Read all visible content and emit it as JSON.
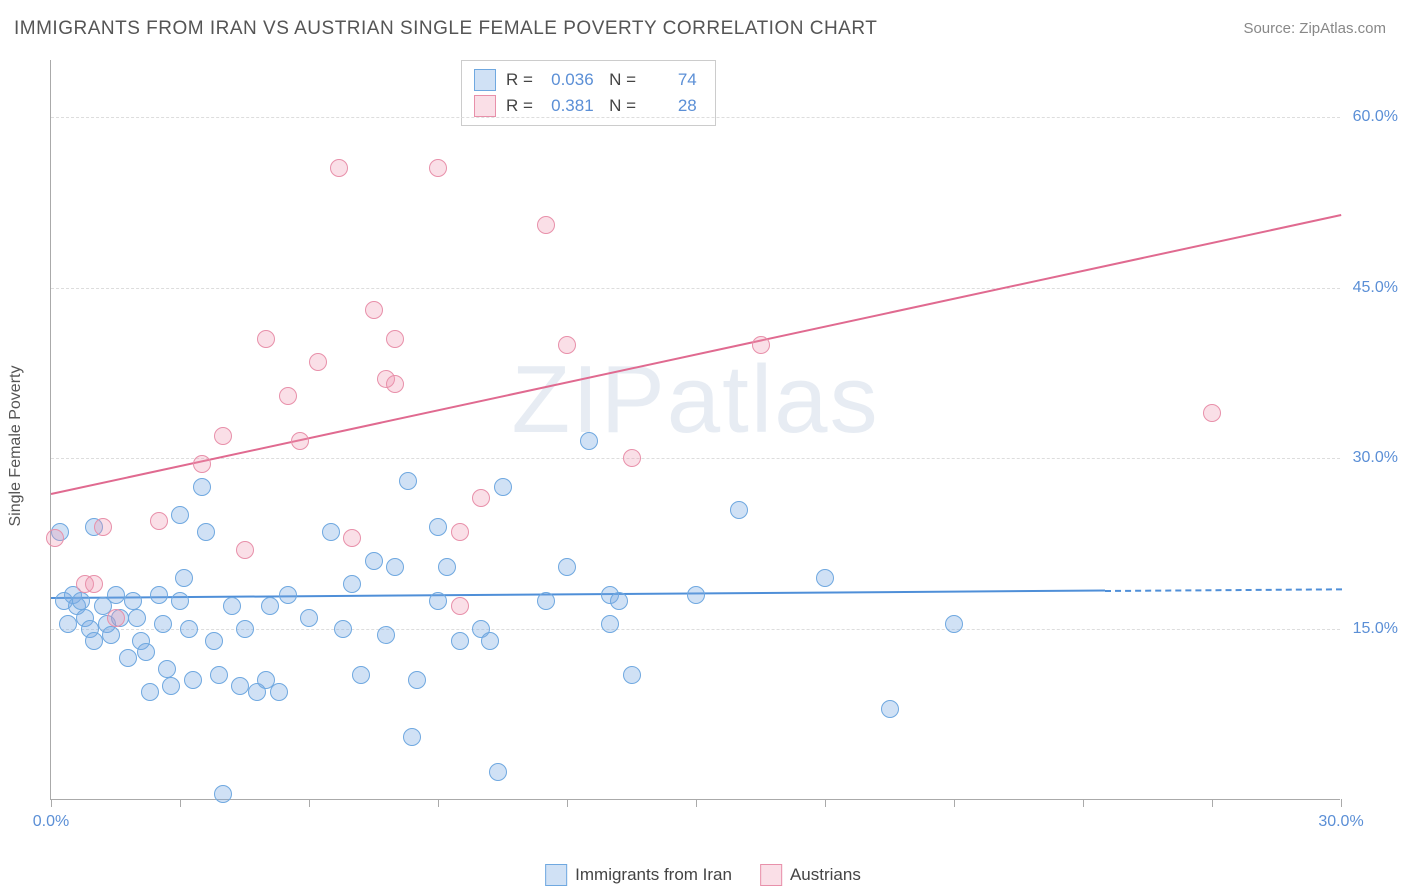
{
  "chart": {
    "title": "IMMIGRANTS FROM IRAN VS AUSTRIAN SINGLE FEMALE POVERTY CORRELATION CHART",
    "source": "Source: ZipAtlas.com",
    "ylabel": "Single Female Poverty",
    "watermark": "ZIPatlas",
    "background_color": "#ffffff",
    "grid_color": "#dddddd",
    "axis_color": "#aaaaaa",
    "label_color": "#5b8fd6",
    "title_color": "#555555",
    "title_fontsize": 19,
    "label_fontsize": 16,
    "tick_fontsize": 16,
    "xlim": [
      0,
      30
    ],
    "ylim": [
      0,
      65
    ],
    "xticks": [
      0,
      3,
      6,
      9,
      12,
      15,
      18,
      21,
      24,
      27,
      30
    ],
    "xtick_labels": {
      "0": "0.0%",
      "30": "30.0%"
    },
    "yticks": [
      15,
      30,
      45,
      60
    ],
    "ytick_labels": {
      "15": "15.0%",
      "30": "30.0%",
      "45": "45.0%",
      "60": "60.0%"
    },
    "marker_radius": 9,
    "marker_stroke_width": 1.5,
    "trend_line_width": 2,
    "series": [
      {
        "id": "iran",
        "name": "Immigrants from Iran",
        "fill_color": "rgba(120,170,225,0.35)",
        "stroke_color": "#6fa8e0",
        "r": 0.036,
        "n": 74,
        "trend": {
          "x1": 0,
          "y1": 17.8,
          "x2": 30,
          "y2": 18.6,
          "solid_until_x": 24.5,
          "color": "#4f8fd8"
        },
        "points": [
          [
            0.2,
            23.5
          ],
          [
            0.3,
            17.5
          ],
          [
            0.4,
            15.5
          ],
          [
            0.5,
            18.0
          ],
          [
            0.6,
            17.0
          ],
          [
            0.7,
            17.5
          ],
          [
            0.8,
            16.0
          ],
          [
            0.9,
            15.0
          ],
          [
            1.0,
            14.0
          ],
          [
            1.0,
            24.0
          ],
          [
            1.2,
            17.0
          ],
          [
            1.3,
            15.5
          ],
          [
            1.4,
            14.5
          ],
          [
            1.5,
            18.0
          ],
          [
            1.6,
            16.0
          ],
          [
            1.8,
            12.5
          ],
          [
            1.9,
            17.5
          ],
          [
            2.0,
            16.0
          ],
          [
            2.1,
            14.0
          ],
          [
            2.2,
            13.0
          ],
          [
            2.3,
            9.5
          ],
          [
            2.5,
            18.0
          ],
          [
            2.6,
            15.5
          ],
          [
            2.7,
            11.5
          ],
          [
            2.8,
            10.0
          ],
          [
            3.0,
            25.0
          ],
          [
            3.0,
            17.5
          ],
          [
            3.1,
            19.5
          ],
          [
            3.2,
            15.0
          ],
          [
            3.3,
            10.5
          ],
          [
            3.5,
            27.5
          ],
          [
            3.6,
            23.5
          ],
          [
            3.8,
            14.0
          ],
          [
            3.9,
            11.0
          ],
          [
            4.0,
            0.5
          ],
          [
            4.4,
            10.0
          ],
          [
            4.5,
            15.0
          ],
          [
            4.8,
            9.5
          ],
          [
            5.0,
            10.5
          ],
          [
            5.1,
            17.0
          ],
          [
            5.3,
            9.5
          ],
          [
            5.5,
            18.0
          ],
          [
            6.0,
            16.0
          ],
          [
            6.5,
            23.5
          ],
          [
            7.0,
            19.0
          ],
          [
            7.2,
            11.0
          ],
          [
            7.5,
            21.0
          ],
          [
            7.8,
            14.5
          ],
          [
            8.0,
            20.5
          ],
          [
            8.3,
            28.0
          ],
          [
            8.5,
            10.5
          ],
          [
            8.4,
            5.5
          ],
          [
            9.0,
            24.0
          ],
          [
            9.0,
            17.5
          ],
          [
            9.2,
            20.5
          ],
          [
            9.5,
            14.0
          ],
          [
            10.4,
            2.5
          ],
          [
            10.0,
            15.0
          ],
          [
            10.2,
            14.0
          ],
          [
            10.5,
            27.5
          ],
          [
            11.5,
            17.5
          ],
          [
            12.0,
            20.5
          ],
          [
            12.5,
            31.5
          ],
          [
            13.0,
            18.0
          ],
          [
            13.0,
            15.5
          ],
          [
            13.2,
            17.5
          ],
          [
            13.5,
            11.0
          ],
          [
            15.0,
            18.0
          ],
          [
            16.0,
            25.5
          ],
          [
            18.0,
            19.5
          ],
          [
            19.5,
            8.0
          ],
          [
            21.0,
            15.5
          ],
          [
            4.2,
            17.0
          ],
          [
            6.8,
            15.0
          ]
        ]
      },
      {
        "id": "austrians",
        "name": "Austrians",
        "fill_color": "rgba(240,150,175,0.30)",
        "stroke_color": "#e890aa",
        "r": 0.381,
        "n": 28,
        "trend": {
          "x1": 0,
          "y1": 27.0,
          "x2": 30,
          "y2": 51.5,
          "solid_until_x": 30,
          "color": "#e06a90"
        },
        "points": [
          [
            0.1,
            23.0
          ],
          [
            0.8,
            19.0
          ],
          [
            1.0,
            19.0
          ],
          [
            1.2,
            24.0
          ],
          [
            1.5,
            16.0
          ],
          [
            2.5,
            24.5
          ],
          [
            3.5,
            29.5
          ],
          [
            4.0,
            32.0
          ],
          [
            4.5,
            22.0
          ],
          [
            5.0,
            40.5
          ],
          [
            5.5,
            35.5
          ],
          [
            5.8,
            31.5
          ],
          [
            6.2,
            38.5
          ],
          [
            6.7,
            55.5
          ],
          [
            7.0,
            23.0
          ],
          [
            7.5,
            43.0
          ],
          [
            7.8,
            37.0
          ],
          [
            8.0,
            40.5
          ],
          [
            8.0,
            36.5
          ],
          [
            9.0,
            55.5
          ],
          [
            9.5,
            23.5
          ],
          [
            9.5,
            17.0
          ],
          [
            10.0,
            26.5
          ],
          [
            11.5,
            50.5
          ],
          [
            12.0,
            40.0
          ],
          [
            13.5,
            30.0
          ],
          [
            16.5,
            40.0
          ],
          [
            27.0,
            34.0
          ]
        ]
      }
    ],
    "legend_top_labels": {
      "r_prefix": "R =",
      "n_prefix": "N ="
    }
  }
}
